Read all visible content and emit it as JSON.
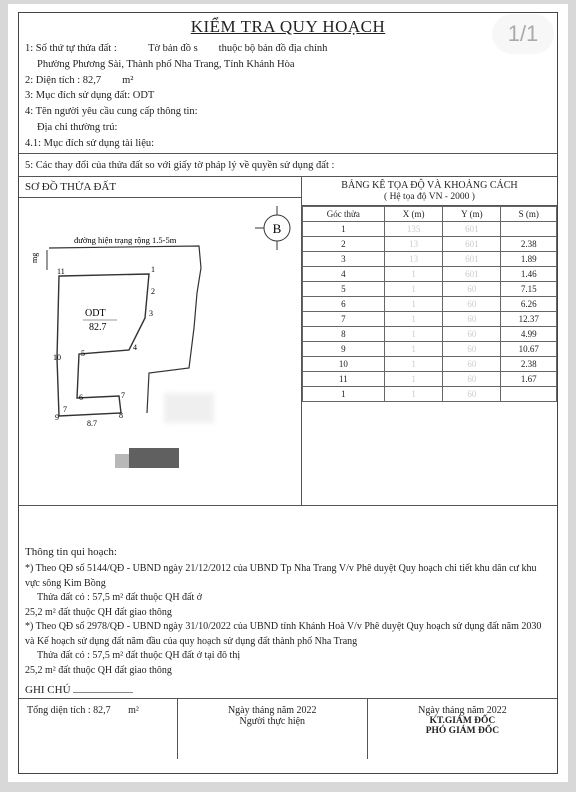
{
  "pageNum": "1/1",
  "title": "KIỂM TRA QUY HOẠCH",
  "header": {
    "line1a": "1: Số thứ tự thửa đất :",
    "line1b": "Tờ bản đồ s",
    "line1c": "thuộc bộ bản đồ địa chính",
    "line1sub": "Phường Phương Sài, Thành phố Nha Trang, Tỉnh Khánh Hòa",
    "line2": "2: Diện tích : 82,7",
    "line2unit": "m²",
    "line3": "3: Mục đích sử dụng đất:   ODT",
    "line4": "4: Tên người yêu cầu cung cấp thông tin:",
    "line4sub": "Địa chỉ thường trú:",
    "line41": "4.1: Mục đích sử dụng tài liệu:",
    "line5": "5: Các thay đổi của thửa đất so với giấy tờ pháp lý về quyền sử dụng đất :"
  },
  "diagram": {
    "title": "SƠ ĐỒ THỬA ĐẤT",
    "road_label": "đường hiện trạng rộng 1.5-5m",
    "odt_label": "ODT",
    "area_label": "82.7",
    "north_label": "B",
    "points": [
      "1",
      "2",
      "3",
      "4",
      "5",
      "6",
      "7",
      "8",
      "9",
      "10",
      "11"
    ],
    "dim_left": "8.7",
    "dim_bottom": "7"
  },
  "coords": {
    "title": "BẢNG KÊ TỌA ĐỘ VÀ KHOẢNG CÁCH",
    "subtitle": "( Hệ tọa độ VN - 2000 )",
    "headers": [
      "Góc thửa",
      "X (m)",
      "Y (m)",
      "S (m)"
    ],
    "rows": [
      {
        "g": "1",
        "x": "135",
        "y": "601",
        "s": ""
      },
      {
        "g": "2",
        "x": "13",
        "y": "601",
        "s": "2.38"
      },
      {
        "g": "3",
        "x": "13",
        "y": "601",
        "s": "1.89"
      },
      {
        "g": "4",
        "x": "1",
        "y": "601",
        "s": "1.46"
      },
      {
        "g": "5",
        "x": "1",
        "y": "60",
        "s": "7.15"
      },
      {
        "g": "6",
        "x": "1",
        "y": "60",
        "s": "6.26"
      },
      {
        "g": "7",
        "x": "1",
        "y": "60",
        "s": "12.37"
      },
      {
        "g": "8",
        "x": "1",
        "y": "60",
        "s": "4.99"
      },
      {
        "g": "9",
        "x": "1",
        "y": "60",
        "s": "10.67"
      },
      {
        "g": "10",
        "x": "1",
        "y": "60",
        "s": "2.38"
      },
      {
        "g": "11",
        "x": "1",
        "y": "60",
        "s": "1.67"
      },
      {
        "g": "1",
        "x": "1",
        "y": "60",
        "s": ""
      }
    ]
  },
  "planning": {
    "title": "Thông tin qui hoạch:",
    "p1": "*) Theo QĐ số 5144/QĐ - UBND ngày 21/12/2012 của UBND Tp Nha Trang V/v Phê duyệt Quy hoạch chi tiết khu dân cư khu vực sông Kim Bồng",
    "p1a": "Thửa đất có :   57,5 m² đất thuộc QH đất ở",
    "p1b": "25,2 m² đất thuộc QH đất giao thông",
    "p2": "*) Theo QĐ số 2978/QĐ - UBND ngày 31/10/2022 của UBND tỉnh Khánh Hoà V/v Phê duyệt Quy hoạch sử dụng đất năm 2030 và Kế hoạch sử dụng đất năm đầu của quy hoạch sử dụng đất thành phố Nha Trang",
    "p2a": "Thửa đất có :   57,5 m² đất thuộc QH đất ở tại đô thị",
    "p2b": "25,2 m² đất thuộc QH đất giao thông"
  },
  "ghichu": "GHI CHÚ",
  "footer": {
    "total": "Tổng diện tích : 82,7",
    "total_unit": "m²",
    "date_fmt": "Ngày      tháng      năm 2022",
    "signer1": "Người thực hiện",
    "signer2a": "KT.GIÁM ĐỐC",
    "signer2b": "PHÓ GIÁM ĐỐC"
  },
  "colors": {
    "page_bg": "#ffffff",
    "outer_bg": "#d8d8d8",
    "border": "#444444",
    "text": "#222222",
    "blur": "#e6e6e6"
  }
}
